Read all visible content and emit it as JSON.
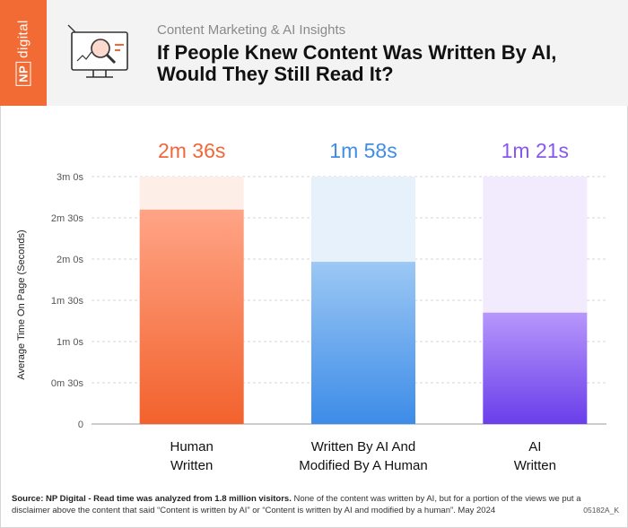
{
  "header": {
    "brand": {
      "badge": "NP",
      "word": "digital"
    },
    "subtitle": "Content Marketing & AI Insights",
    "title_line1": "If People Knew Content Was Written By AI,",
    "title_line2": "Would They Still Read It?",
    "icon": "monitor-magnifier-icon"
  },
  "chart_data": {
    "type": "bar",
    "ylabel": "Average Time On Page (Seconds)",
    "yticks": [
      "0",
      "0m 30s",
      "1m 0s",
      "1m 30s",
      "2m 0s",
      "2m 30s",
      "3m 0s"
    ],
    "ylim": [
      0,
      180
    ],
    "grid": true,
    "categories": [
      {
        "line1": "Human",
        "line2": "Written"
      },
      {
        "line1": "Written By AI And",
        "line2": "Modified By A Human"
      },
      {
        "line1": "AI",
        "line2": "Written"
      }
    ],
    "values": [
      156,
      118,
      81
    ],
    "value_labels": [
      "2m 36s",
      "1m 58s",
      "1m 21s"
    ],
    "colors": [
      {
        "top": "#ffa486",
        "bottom": "#f2622d",
        "bg": "#fdeee8",
        "label": "#f0683a"
      },
      {
        "top": "#9cc8f4",
        "bottom": "#3d8ce8",
        "bg": "#e7f1fb",
        "label": "#3f8ee4"
      },
      {
        "top": "#b797fb",
        "bottom": "#6a3eea",
        "bg": "#f1ebfd",
        "label": "#8858ee"
      }
    ]
  },
  "footer": {
    "source_bold": "Source:  NP Digital - Read time was analyzed from 1.8 million visitors.",
    "source_rest": " None of the content was written by AI, but for a portion of the views we put a disclaimer above the content that said “Content is written by AI” or “Content is written by AI and modified by a human”. May 2024",
    "code": "05182A_K"
  }
}
